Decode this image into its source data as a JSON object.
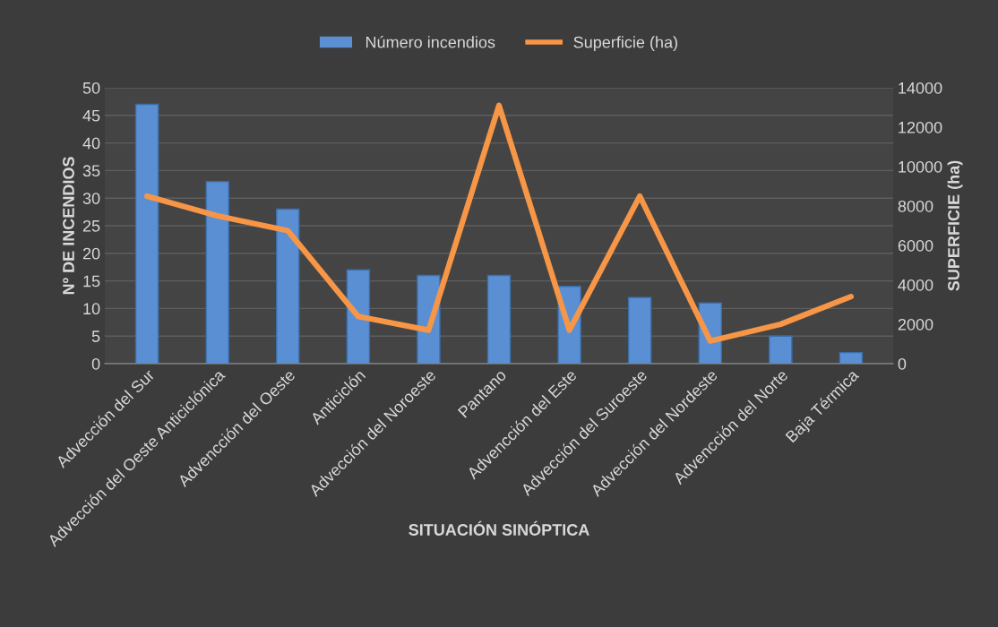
{
  "chart_data": {
    "type": "bar",
    "xlabel": "SITUACIÓN SINÓPTICA",
    "ylabel": "Nº DE INCENDIOS",
    "y2label": "SUPERFICIE (ha)",
    "categories": [
      "Advección del Sur",
      "Advección del Oeste Anticiclónica",
      "Advencción del Oeste",
      "Anticiclón",
      "Advección del Noroeste",
      "Pantano",
      "Advencción del Este",
      "Advección del Suroeste",
      "Advección del Nordeste",
      "Advencción del Norte",
      "Baja Térmica"
    ],
    "series": [
      {
        "name": "Número incendios",
        "color": "#5a8fd4",
        "values": [
          47,
          33,
          28,
          17,
          16,
          16,
          14,
          12,
          11,
          5,
          2
        ]
      },
      {
        "name": "Superficie (ha)",
        "type": "line",
        "axis": "y2",
        "color": "#f79646",
        "values": [
          8500,
          7500,
          6750,
          2400,
          1700,
          13100,
          1700,
          8500,
          1150,
          2000,
          3400
        ]
      }
    ],
    "ylim": [
      0,
      50
    ],
    "yticks": [
      0,
      5,
      10,
      15,
      20,
      25,
      30,
      35,
      40,
      45,
      50
    ],
    "y2lim": [
      0,
      14000
    ],
    "y2ticks": [
      0,
      2000,
      4000,
      6000,
      8000,
      10000,
      12000,
      14000
    ],
    "grid": "y",
    "legend": "top",
    "marker": "none"
  }
}
